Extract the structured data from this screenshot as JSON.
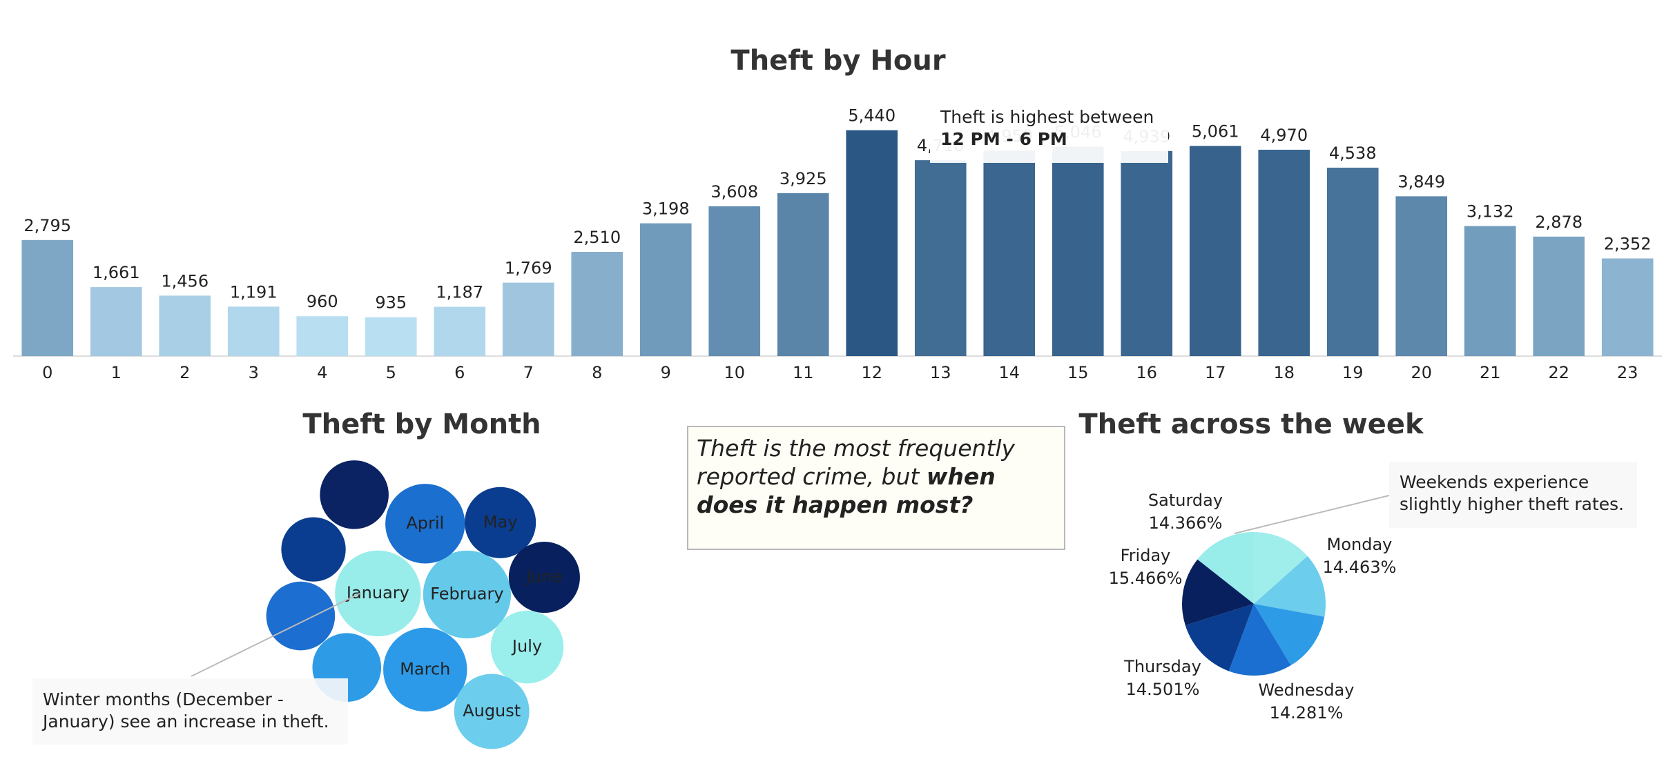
{
  "chart_data": [
    {
      "type": "bar",
      "title": "Theft by Hour",
      "categories": [
        "0",
        "1",
        "2",
        "3",
        "4",
        "5",
        "6",
        "7",
        "8",
        "9",
        "10",
        "11",
        "12",
        "13",
        "14",
        "15",
        "16",
        "17",
        "18",
        "19",
        "20",
        "21",
        "22",
        "23"
      ],
      "values": [
        2795,
        1661,
        1456,
        1191,
        960,
        935,
        1187,
        1769,
        2510,
        3198,
        3608,
        3925,
        5440,
        4718,
        4950,
        5046,
        4939,
        5061,
        4970,
        4538,
        3849,
        3132,
        2878,
        2352
      ],
      "value_labels": [
        "2,795",
        "1,661",
        "1,456",
        "1,191",
        "960",
        "935",
        "1,187",
        "1,769",
        "2,510",
        "3,198",
        "3,608",
        "3,925",
        "5,440",
        "4,718",
        "4,950",
        "5,046",
        "4,939",
        "5,061",
        "4,970",
        "4,538",
        "3,849",
        "3,132",
        "2,878",
        "2,352"
      ],
      "color_range": [
        "#b9dff3",
        "#2a5783"
      ],
      "ylim": [
        0,
        6000
      ],
      "annotation": {
        "text": "Theft is highest between",
        "highlight": "12 PM - 6 PM"
      }
    },
    {
      "type": "packed_bubble",
      "title": "Theft by Month",
      "categories": [
        "January",
        "February",
        "March",
        "April",
        "May",
        "June",
        "July",
        "August",
        null,
        null,
        null,
        null
      ],
      "values": [
        6400,
        6700,
        6100,
        5500,
        4400,
        4400,
        4600,
        4900,
        4100,
        3600,
        4100,
        4100
      ],
      "colors": [
        "#98ecea",
        "#65c9ea",
        "#2c9ae8",
        "#1a6fcf",
        "#0a3d8f",
        "#08215e",
        "#9aefec",
        "#6ccdec",
        "#0b2363",
        "#0a3d8f",
        "#1c6ed0",
        "#2e9be7"
      ],
      "annotation": {
        "lines": [
          "Winter months (December -",
          "January) see an increase in theft."
        ]
      }
    },
    {
      "type": "pie",
      "title": "Theft across the week",
      "categories": [
        null,
        "Monday",
        null,
        "Wednesday",
        "Thursday",
        "Friday",
        "Saturday"
      ],
      "values": [
        13.423,
        14.463,
        13.5,
        14.281,
        14.501,
        15.466,
        14.366
      ],
      "value_labels": [
        null,
        "14.463%",
        null,
        "14.281%",
        "14.501%",
        "15.466%",
        "14.366%"
      ],
      "colors": [
        "#a0eeec",
        "#6ccdec",
        "#2e9be7",
        "#1b6fd0",
        "#0a3d8f",
        "#08215e",
        "#98ecea"
      ],
      "annotation": {
        "lines": [
          "Weekends experience",
          "slightly higher theft rates."
        ]
      }
    }
  ],
  "note": {
    "text": "Theft is the most frequently reported crime, but ",
    "emphasis": "when does it happen most?"
  }
}
